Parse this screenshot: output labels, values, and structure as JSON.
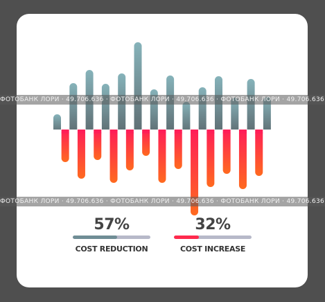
{
  "colors": {
    "up_top": "#86b3ba",
    "up_bottom": "#5e6d72",
    "down_top": "#ff1e57",
    "down_bottom": "#ff6a1f",
    "reduction_fill": "#6f8d95",
    "increase_fill": "#ff2a4d",
    "track": "#b7b9c9"
  },
  "chart_data": {
    "type": "bar",
    "baseline": 0,
    "series": [
      {
        "values": [
          22,
          67,
          86,
          66,
          81,
          126,
          58,
          78,
          40,
          61,
          77,
          46,
          73,
          47
        ]
      },
      {
        "values": [
          -47,
          -71,
          -44,
          -77,
          -59,
          -38,
          -77,
          -57,
          -124,
          -83,
          -64,
          -86,
          -67
        ]
      }
    ],
    "ylim": [
      -130,
      130
    ]
  },
  "stats": [
    {
      "percent": "57%",
      "label": "COST REDUCTION",
      "fill": 0.57
    },
    {
      "percent": "32%",
      "label": "COST INCREASE",
      "fill": 0.32
    }
  ],
  "watermark": "ФОТОБАНК ЛОРИ · 49.706.636 · ФОТОБАНК ЛОРИ · 49.706.636 · ФОТОБАНК ЛОРИ · 49.706.636 · ФОТОБАНК ЛОРИ · 49.706.636"
}
